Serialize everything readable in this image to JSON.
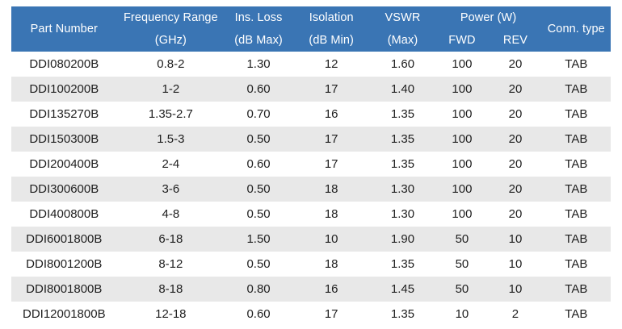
{
  "table": {
    "title_semantic": "RF component specification table",
    "header": {
      "part_number": "Part Number",
      "freq_range_l1": "Frequency Range",
      "freq_range_l2": "(GHz)",
      "ins_loss_l1": "Ins. Loss",
      "ins_loss_l2": "(dB Max)",
      "isolation_l1": "Isolation",
      "isolation_l2": "(dB Min)",
      "vswr_l1": "VSWR",
      "vswr_l2": "(Max)",
      "power_l1": "Power (W)",
      "power_fwd": "FWD",
      "power_rev": "REV",
      "conn_type": "Conn. type"
    },
    "columns": [
      "Part Number",
      "Frequency Range (GHz)",
      "Ins. Loss (dB Max)",
      "Isolation (dB Min)",
      "VSWR (Max)",
      "Power (W) FWD",
      "Power (W) REV",
      "Conn. type"
    ],
    "rows": [
      [
        "DDI080200B",
        "0.8-2",
        "1.30",
        "12",
        "1.60",
        "100",
        "20",
        "TAB"
      ],
      [
        "DDI100200B",
        "1-2",
        "0.60",
        "17",
        "1.40",
        "100",
        "20",
        "TAB"
      ],
      [
        "DDI135270B",
        "1.35-2.7",
        "0.70",
        "16",
        "1.35",
        "100",
        "20",
        "TAB"
      ],
      [
        "DDI150300B",
        "1.5-3",
        "0.50",
        "17",
        "1.35",
        "100",
        "20",
        "TAB"
      ],
      [
        "DDI200400B",
        "2-4",
        "0.60",
        "17",
        "1.35",
        "100",
        "20",
        "TAB"
      ],
      [
        "DDI300600B",
        "3-6",
        "0.50",
        "18",
        "1.30",
        "100",
        "20",
        "TAB"
      ],
      [
        "DDI400800B",
        "4-8",
        "0.50",
        "18",
        "1.30",
        "100",
        "20",
        "TAB"
      ],
      [
        "DDI6001800B",
        "6-18",
        "1.50",
        "10",
        "1.90",
        "50",
        "10",
        "TAB"
      ],
      [
        "DDI8001200B",
        "8-12",
        "0.50",
        "18",
        "1.35",
        "50",
        "10",
        "TAB"
      ],
      [
        "DDI8001800B",
        "8-18",
        "0.80",
        "16",
        "1.45",
        "50",
        "10",
        "TAB"
      ],
      [
        "DDI12001800B",
        "12-18",
        "0.60",
        "17",
        "1.35",
        "10",
        "2",
        "TAB"
      ]
    ]
  },
  "colors": {
    "header_bg": "#3A75B4",
    "header_text": "#FFFFFF",
    "row_bg": "#FFFFFF",
    "row_alt_bg": "#E8E8E8",
    "body_text": "#1E1E1E"
  }
}
